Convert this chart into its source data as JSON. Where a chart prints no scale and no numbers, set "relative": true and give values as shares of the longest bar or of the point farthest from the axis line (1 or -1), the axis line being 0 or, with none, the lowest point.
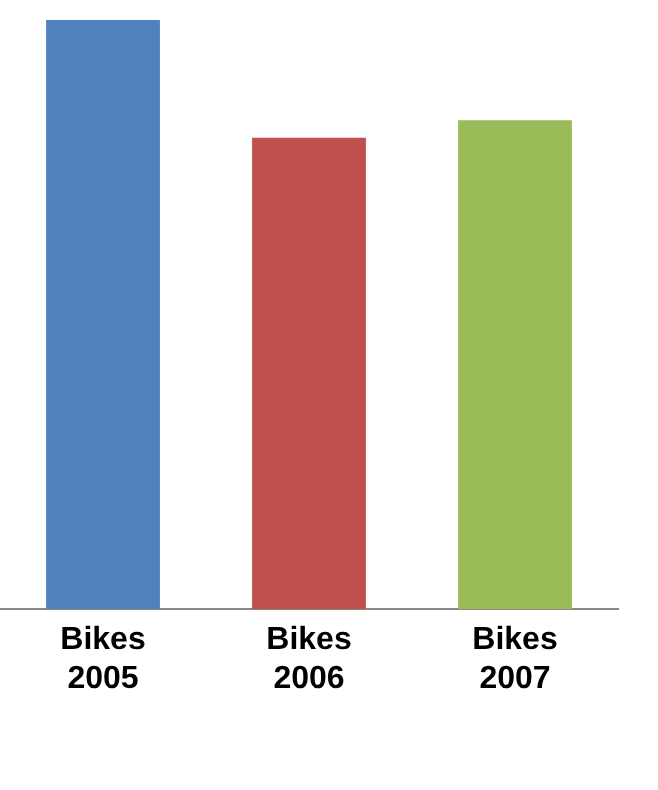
{
  "chart_data": {
    "type": "bar",
    "relative": true,
    "categories": [
      "Bikes 2005",
      "Bikes 2006",
      "Bikes 2007"
    ],
    "values": [
      1,
      0.8,
      0.83
    ],
    "colors": [
      "#4f81bd",
      "#c0504d",
      "#9bbb59"
    ],
    "legend": false,
    "grid": false
  }
}
